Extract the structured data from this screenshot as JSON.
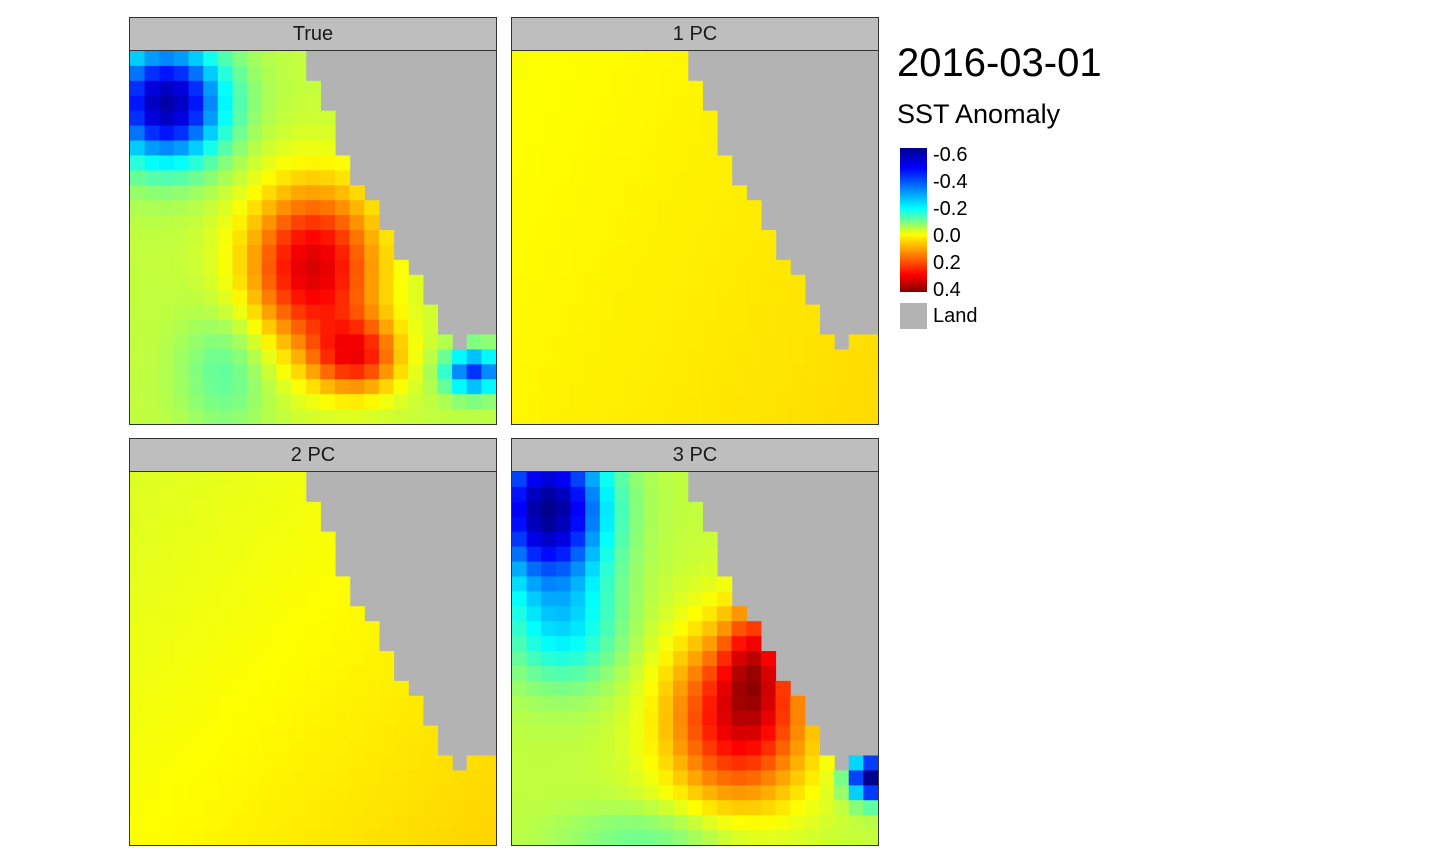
{
  "title": "2016-03-01",
  "legend": {
    "title": "SST Anomaly",
    "ticks": [
      "-0.6",
      "-0.4",
      "-0.2",
      "0.0",
      "0.2",
      "0.4"
    ],
    "tick_values": [
      -0.6,
      -0.4,
      -0.2,
      0.0,
      0.2,
      0.4
    ],
    "land_label": "Land",
    "land_color": "#b3b3b3"
  },
  "colors": {
    "scale": [
      "#00008f",
      "#0000ff",
      "#0080ff",
      "#00ffff",
      "#80ff80",
      "#ffff00",
      "#ff8000",
      "#ff0000",
      "#800000"
    ],
    "land": "#b3b3b3",
    "strip": "#bebebe"
  },
  "chart_data": {
    "type": "heatmap",
    "facets": [
      "True",
      "1 PC",
      "2 PC",
      "3 PC"
    ],
    "value_range": [
      -0.7,
      0.45
    ],
    "grid": false,
    "legend_placement": "right",
    "panels": [
      {
        "name": "True",
        "anomaly_range": [
          -0.6,
          0.4
        ]
      },
      {
        "name": "1 PC",
        "anomaly_range": [
          0.0,
          0.05
        ]
      },
      {
        "name": "2 PC",
        "anomaly_range": [
          -0.03,
          0.08
        ]
      },
      {
        "name": "3 PC",
        "anomaly_range": [
          -0.7,
          0.4
        ]
      }
    ]
  }
}
